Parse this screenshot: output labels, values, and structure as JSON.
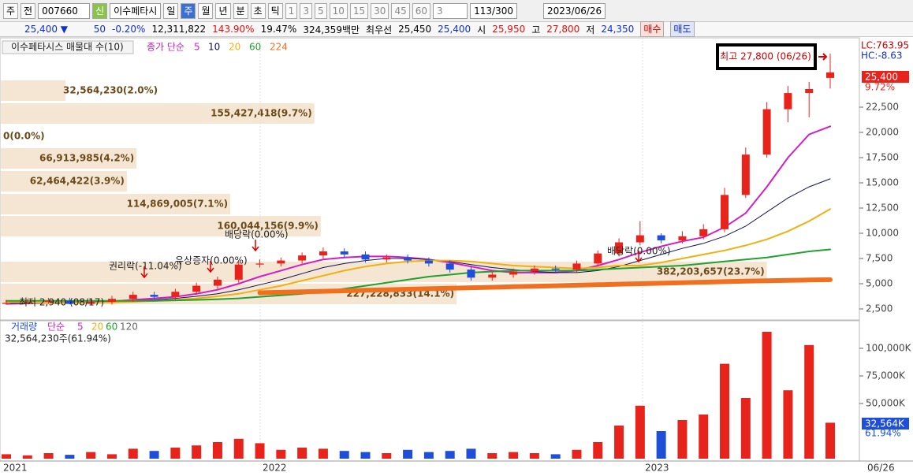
{
  "toolbar": {
    "items": [
      "주",
      "전",
      "007660",
      "신",
      "이수페타시",
      "일",
      "주",
      "월",
      "년",
      "분",
      "초",
      "틱",
      "1",
      "3",
      "5",
      "10",
      "15",
      "30",
      "45",
      "60",
      "3",
      "113/300",
      "2023/06/26"
    ]
  },
  "info_bar": {
    "items": [
      "25,400 ▼",
      "50",
      "-0.20%",
      "12,311,822",
      "143.90%",
      "19.47%",
      "324,359백만",
      "최우선",
      "25,450",
      "25,400",
      "시",
      "25,950",
      "고",
      "27,800",
      "저",
      "24,350",
      "매수",
      "매도"
    ]
  },
  "chart_data": {
    "type": "candlestick",
    "title": "이수페타시스 매물대 수(10)",
    "ma_label": "종가 단순",
    "open": [
      3000,
      3100,
      3200,
      3300,
      3000,
      3200,
      3500,
      3900,
      3700,
      4200,
      4800,
      5400,
      6900,
      7000,
      7300,
      7800,
      8200,
      7900,
      7400,
      7600,
      7300,
      7000,
      6400,
      5600,
      5900,
      6200,
      6500,
      6400,
      7000,
      8000,
      9100,
      9800,
      9300,
      9700,
      10400,
      13800,
      17800,
      22300,
      23900,
      25950
    ],
    "high": [
      3400,
      3500,
      3600,
      3600,
      3500,
      3800,
      4200,
      4200,
      4500,
      5100,
      5700,
      7200,
      7400,
      7600,
      8100,
      8600,
      8500,
      8200,
      7900,
      7900,
      7600,
      7300,
      6700,
      6200,
      6500,
      6800,
      6800,
      7300,
      8300,
      9500,
      11200,
      10000,
      10200,
      10900,
      14500,
      18500,
      23000,
      24600,
      25000,
      27800
    ],
    "low": [
      2950,
      2980,
      3000,
      2960,
      2960,
      2940,
      3200,
      3400,
      3400,
      3900,
      4500,
      5100,
      6600,
      6700,
      7000,
      7500,
      7600,
      7100,
      7100,
      7000,
      6700,
      6100,
      5300,
      5300,
      5600,
      5900,
      6100,
      6100,
      6700,
      7700,
      8800,
      9000,
      9000,
      9400,
      10100,
      13500,
      17500,
      21000,
      21500,
      24350
    ],
    "close": [
      3100,
      3200,
      3300,
      3000,
      3200,
      3500,
      3900,
      3700,
      4200,
      4800,
      5400,
      6900,
      7000,
      7300,
      7800,
      8200,
      7900,
      7400,
      7600,
      7300,
      7000,
      6400,
      5600,
      5900,
      6200,
      6500,
      6400,
      7000,
      8000,
      9100,
      9800,
      9300,
      9700,
      10400,
      13800,
      17800,
      22300,
      23900,
      24300,
      25400
    ],
    "up_color": "#e8231c",
    "down_color": "#1f4fd8",
    "moving_averages": [
      {
        "name": "5",
        "color": "#d21ec8",
        "width": 2,
        "values": [
          3000,
          3050,
          3100,
          3150,
          3150,
          3250,
          3400,
          3550,
          3700,
          4000,
          4400,
          5000,
          5700,
          6300,
          6900,
          7400,
          7600,
          7700,
          7700,
          7600,
          7400,
          7100,
          6700,
          6300,
          6100,
          6100,
          6100,
          6300,
          6800,
          7400,
          8100,
          8700,
          9200,
          9600,
          10600,
          12000,
          14600,
          17500,
          19800,
          20600
        ]
      },
      {
        "name": "10",
        "color": "#101060",
        "width": 1,
        "values": [
          3050,
          3080,
          3100,
          3120,
          3150,
          3200,
          3300,
          3400,
          3550,
          3750,
          4000,
          4400,
          4900,
          5400,
          6000,
          6600,
          7000,
          7300,
          7500,
          7500,
          7400,
          7200,
          6900,
          6600,
          6400,
          6200,
          6100,
          6100,
          6300,
          6700,
          7300,
          7900,
          8500,
          9000,
          9700,
          10700,
          12100,
          13500,
          14600,
          15400
        ]
      },
      {
        "name": "20",
        "color": "#f0b010",
        "width": 2,
        "values": [
          3200,
          3150,
          3100,
          3100,
          3100,
          3150,
          3200,
          3300,
          3400,
          3550,
          3750,
          4000,
          4400,
          4800,
          5300,
          5800,
          6300,
          6700,
          7000,
          7200,
          7300,
          7300,
          7200,
          7000,
          6800,
          6700,
          6600,
          6500,
          6600,
          6800,
          6800,
          7100,
          7500,
          7900,
          8300,
          8800,
          9400,
          10200,
          11200,
          12400
        ]
      },
      {
        "name": "60",
        "color": "#22a030",
        "width": 2,
        "values": [
          3300,
          3300,
          3300,
          3300,
          3300,
          3300,
          3300,
          3300,
          3350,
          3400,
          3450,
          3550,
          3700,
          3850,
          4000,
          4200,
          4500,
          4800,
          5100,
          5400,
          5700,
          5900,
          6100,
          6200,
          6300,
          6300,
          6300,
          6300,
          6400,
          6500,
          6600,
          6700,
          6800,
          7000,
          7200,
          7400,
          7600,
          7900,
          8200,
          8400
        ]
      },
      {
        "name": "224",
        "color": "#f07020",
        "width": 6,
        "values": [
          null,
          null,
          null,
          null,
          null,
          null,
          null,
          null,
          null,
          null,
          null,
          null,
          4100,
          4150,
          4200,
          4250,
          4300,
          4350,
          4400,
          4450,
          4500,
          4550,
          4600,
          4650,
          4700,
          4750,
          4800,
          4850,
          4900,
          4950,
          5000,
          5050,
          5100,
          5150,
          5200,
          5250,
          5300,
          5330,
          5370,
          5400
        ]
      }
    ],
    "ylim": [
      1484,
      29219
    ],
    "yticks": [
      {
        "value": 2500,
        "label": "2,500"
      },
      {
        "value": 5000,
        "label": "5,000"
      },
      {
        "value": 7500,
        "label": "7,500"
      },
      {
        "value": 10000,
        "label": "10,000"
      },
      {
        "value": 12500,
        "label": "12,500"
      },
      {
        "value": 15000,
        "label": "15,000"
      },
      {
        "value": 17500,
        "label": "17,500"
      },
      {
        "value": 20000,
        "label": "20,000"
      },
      {
        "value": 22500,
        "label": "22,500"
      }
    ],
    "volume_profile": [
      {
        "label": "32,564,230(2.0%)",
        "percent": 2.0
      },
      {
        "label": "155,427,418(9.7%)",
        "percent": 9.7
      },
      {
        "label": "0(0.0%)",
        "percent": 0
      },
      {
        "label": "66,913,985(4.2%)",
        "percent": 4.2
      },
      {
        "label": "62,464,422(3.9%)",
        "percent": 3.9
      },
      {
        "label": "114,869,005(7.1%)",
        "percent": 7.1
      },
      {
        "label": "160,044,156(9.9%)",
        "percent": 9.9
      },
      {
        "label": "382,203,657(23.7%)",
        "percent": 23.7
      },
      {
        "label": "227,228,833(14.1%)",
        "percent": 14.1
      }
    ],
    "annotations": [
      "최고 27,800 (06/26)",
      "최저 2,940 (08/17)",
      "권리락(-11.04%)",
      "유상증자(0.00%)",
      "배당락(0.00%)",
      "배당락(0.00%)"
    ],
    "right_labels": [
      "LC:763.95",
      "HC:-8.63",
      "25,400",
      "9.72%"
    ],
    "volume": {
      "title": "거래량",
      "ma_label": "단순",
      "ma_names": [
        "5",
        "20",
        "60",
        "120"
      ],
      "summary": "32,564,230주(61.94%)",
      "values": [
        4000,
        3000,
        5000,
        3500,
        6000,
        4000,
        9000,
        7000,
        10000,
        12000,
        15000,
        18000,
        14000,
        8000,
        10000,
        9000,
        7000,
        6000,
        5000,
        8000,
        6000,
        7000,
        9000,
        5000,
        6000,
        5000,
        4000,
        8000,
        15000,
        30000,
        48000,
        25000,
        35000,
        40000,
        86000,
        55000,
        115000,
        62000,
        103000,
        32564
      ],
      "ylim": [
        0,
        122857
      ],
      "yticks": [
        {
          "value": 50000,
          "label": "50,000K"
        },
        {
          "value": 75000,
          "label": "75,000K"
        },
        {
          "value": 100000,
          "label": "100,000K"
        }
      ],
      "right_labels": [
        "32,564K",
        "61.94%"
      ]
    },
    "x_labels": [
      "2021",
      "2022",
      "2023",
      "06/26"
    ]
  }
}
